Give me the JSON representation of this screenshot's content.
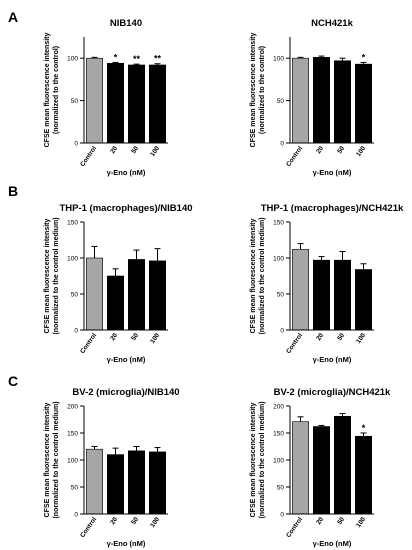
{
  "panel_labels": [
    "A",
    "B",
    "C"
  ],
  "chart_data": [
    {
      "type": "bar",
      "title": "NIB140",
      "ylabel": "CFSE mean fluorescence intensity\n(normalized to the control)",
      "xlabel": "γ-Eno (nM)",
      "categories": [
        "Control",
        "20",
        "50",
        "100"
      ],
      "values": [
        100,
        94,
        92,
        92
      ],
      "errors": [
        1,
        1,
        1,
        1.5
      ],
      "colors": [
        "#a6a6a6",
        "#000000",
        "#000000",
        "#000000"
      ],
      "significance": [
        "",
        "*",
        "**",
        "**"
      ],
      "ylim": [
        0,
        125
      ],
      "yticks": [
        0,
        50,
        100
      ]
    },
    {
      "type": "bar",
      "title": "NCH421k",
      "ylabel": "CFSE mean fluorescence intensity\n(normalized to the control)",
      "xlabel": "γ-Eno (nM)",
      "categories": [
        "Control",
        "20",
        "50",
        "100"
      ],
      "values": [
        100,
        101,
        97,
        93
      ],
      "errors": [
        1,
        1.5,
        3,
        2
      ],
      "colors": [
        "#a6a6a6",
        "#000000",
        "#000000",
        "#000000"
      ],
      "significance": [
        "",
        "",
        "",
        "*"
      ],
      "ylim": [
        0,
        125
      ],
      "yticks": [
        0,
        50,
        100
      ]
    },
    {
      "type": "bar",
      "title": "THP-1 (macrophages)/NIB140",
      "ylabel": "CFSE mean fluorescence intensity\n(normalized to the control medium)",
      "xlabel": "γ-Eno (nM)",
      "categories": [
        "Control",
        "20",
        "50",
        "100"
      ],
      "values": [
        100,
        75,
        98,
        96
      ],
      "errors": [
        16,
        10,
        13,
        17
      ],
      "colors": [
        "#a6a6a6",
        "#000000",
        "#000000",
        "#000000"
      ],
      "significance": [
        "",
        "",
        "",
        ""
      ],
      "ylim": [
        0,
        150
      ],
      "yticks": [
        0,
        50,
        100,
        150
      ]
    },
    {
      "type": "bar",
      "title": "THP-1 (macrophages)/NCH421k",
      "ylabel": "CFSE mean fluorescence intensity\n(normalized to the control medium)",
      "xlabel": "γ-Eno (nM)",
      "categories": [
        "Control",
        "20",
        "50",
        "100"
      ],
      "values": [
        112,
        97,
        97,
        84
      ],
      "errors": [
        8,
        5,
        12,
        8
      ],
      "colors": [
        "#a6a6a6",
        "#000000",
        "#000000",
        "#000000"
      ],
      "significance": [
        "",
        "",
        "",
        ""
      ],
      "ylim": [
        0,
        150
      ],
      "yticks": [
        0,
        50,
        100,
        150
      ]
    },
    {
      "type": "bar",
      "title": "BV-2 (microglia)/NIB140",
      "ylabel": "CFSE mean fluorescence intensity\n(normalized to the control medium)",
      "xlabel": "γ-Eno (nM)",
      "categories": [
        "Control",
        "20",
        "50",
        "100"
      ],
      "values": [
        120,
        110,
        117,
        115
      ],
      "errors": [
        5,
        12,
        8,
        8
      ],
      "colors": [
        "#a6a6a6",
        "#000000",
        "#000000",
        "#000000"
      ],
      "significance": [
        "",
        "",
        "",
        ""
      ],
      "ylim": [
        0,
        200
      ],
      "yticks": [
        0,
        50,
        100,
        150,
        200
      ]
    },
    {
      "type": "bar",
      "title": "BV-2 (microglia)/NCH421k",
      "ylabel": "CFSE mean fluorescence intensity\n(normalized to the control medium)",
      "xlabel": "γ-Eno (nM)",
      "categories": [
        "Control",
        "20",
        "50",
        "100"
      ],
      "values": [
        171,
        162,
        181,
        144
      ],
      "errors": [
        9,
        2,
        5,
        6
      ],
      "colors": [
        "#a6a6a6",
        "#000000",
        "#000000",
        "#000000"
      ],
      "significance": [
        "",
        "",
        "",
        "*"
      ],
      "ylim": [
        0,
        200
      ],
      "yticks": [
        0,
        50,
        100,
        150,
        200
      ]
    }
  ]
}
